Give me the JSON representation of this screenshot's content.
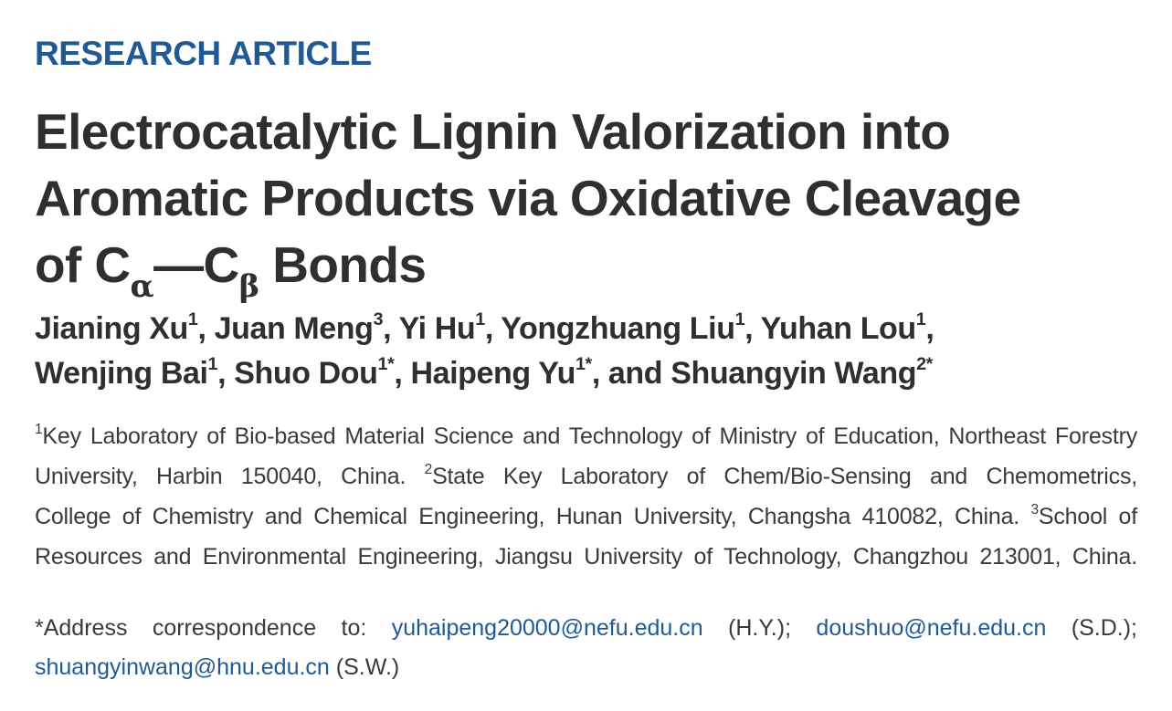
{
  "article_type": "RESEARCH ARTICLE",
  "title": {
    "line1": "Electrocatalytic Lignin Valorization into",
    "line2": "Aromatic Products via Oxidative Cleavage",
    "line3_prefix": "of C",
    "alpha": "α",
    "dash": "—C",
    "beta": "β",
    "line3_suffix": " Bonds"
  },
  "authors": [
    {
      "name": "Jianing Xu",
      "aff": "1",
      "sep": ", "
    },
    {
      "name": "Juan Meng",
      "aff": "3",
      "sep": ", "
    },
    {
      "name": "Yi Hu",
      "aff": "1",
      "sep": ", "
    },
    {
      "name": "Yongzhuang Liu",
      "aff": "1",
      "sep": ", "
    },
    {
      "name": "Yuhan Lou",
      "aff": "1",
      "sep": ","
    },
    {
      "name": "Wenjing Bai",
      "aff": "1",
      "sep": ", "
    },
    {
      "name": "Shuo Dou",
      "aff": "1*",
      "sep": ", "
    },
    {
      "name": "Haipeng Yu",
      "aff": "1*",
      "sep": ", and "
    },
    {
      "name": "Shuangyin Wang",
      "aff": "2*",
      "sep": ""
    }
  ],
  "affiliations": {
    "a1_mark": "1",
    "a1_line1": "Key Laboratory of Bio-based Material Science and Technology of Ministry of Education, Northeast Forestry",
    "a1_line2": "University, Harbin 150040, China. ",
    "a2_mark": "2",
    "a2_line2": "State Key Laboratory of Chem/Bio-Sensing and Chemometrics,",
    "a2_line3": "College of Chemistry and Chemical Engineering, Hunan University, Changsha 410082, China. ",
    "a3_mark": "3",
    "a3_line3": "School of",
    "a3_line4": "Resources and Environmental Engineering, Jiangsu University of Technology, Changzhou 213001, China."
  },
  "correspondence": {
    "prefix": "*Address correspondence to: ",
    "email1": "yuhaipeng20000@nefu.edu.cn",
    "who1": " (H.Y.); ",
    "email2": "doushuo@nefu.edu.cn",
    "who2": " (S.D.);",
    "email3": "shuangyinwang@hnu.edu.cn",
    "who3": " (S.W.)"
  }
}
